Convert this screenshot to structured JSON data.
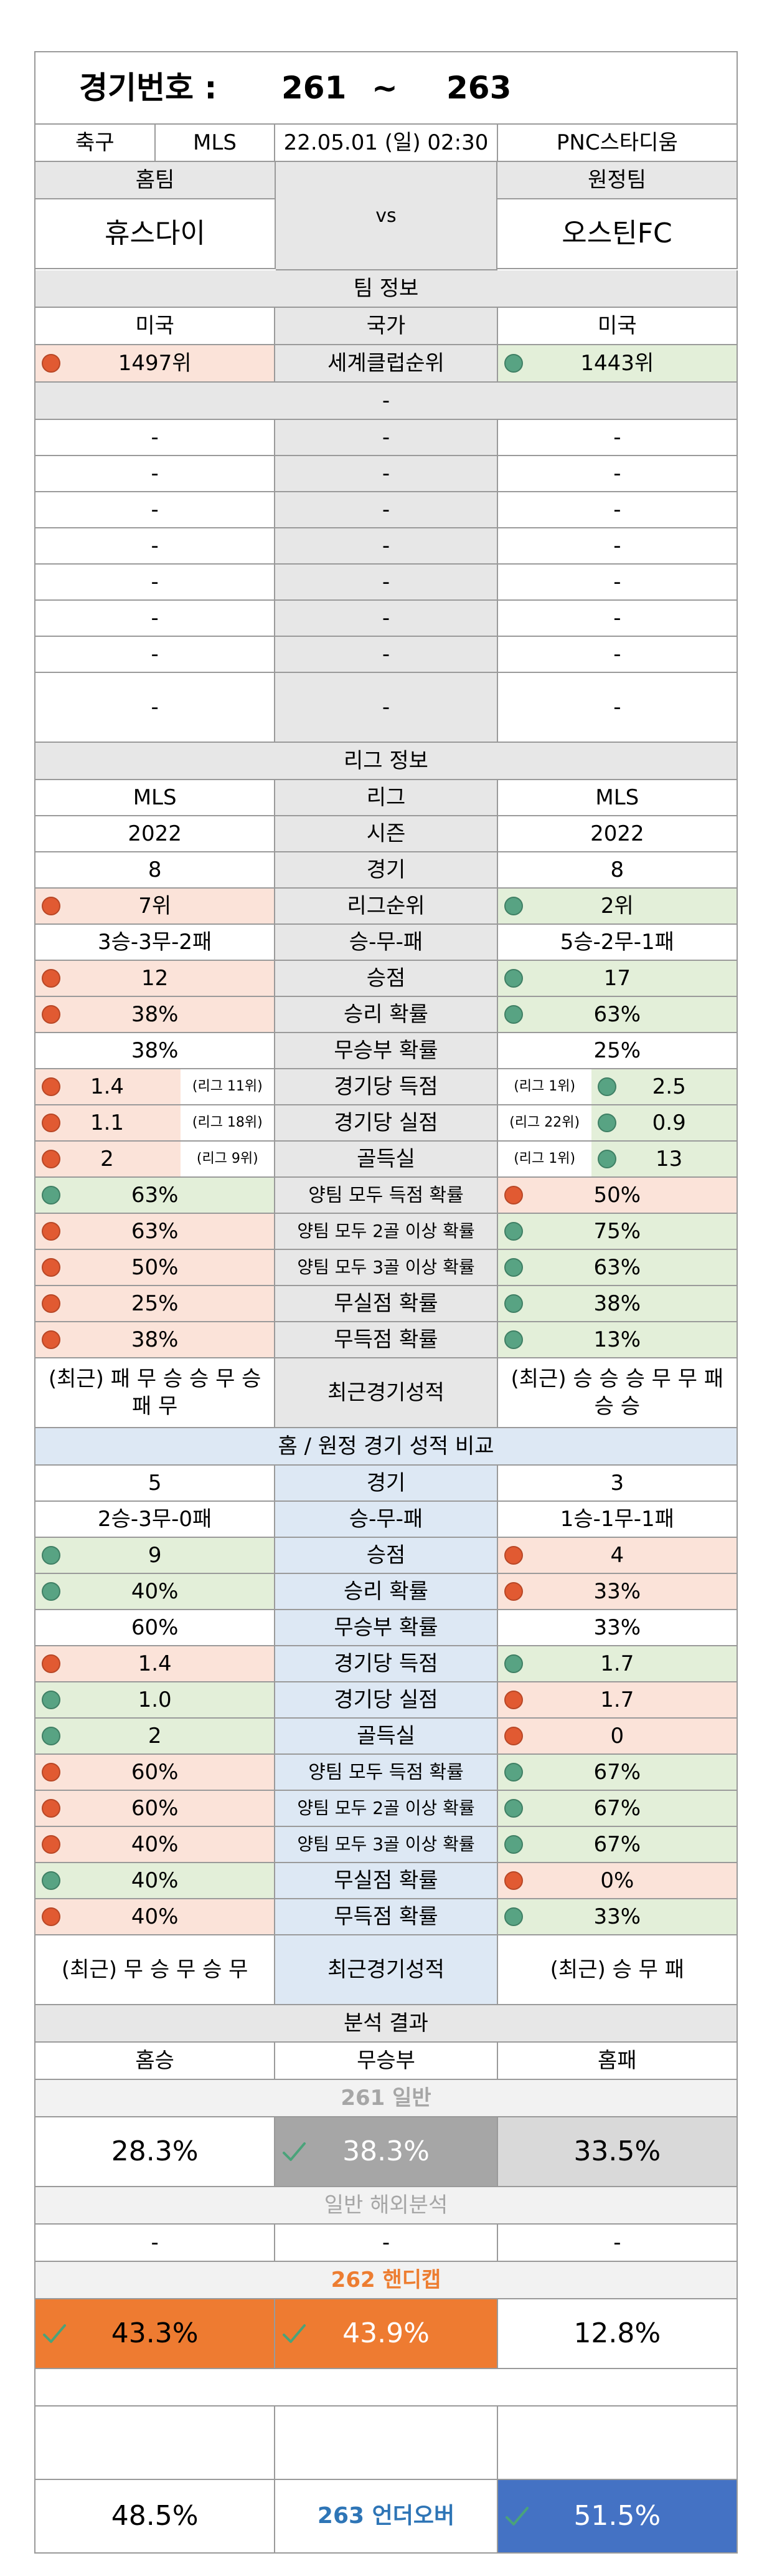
{
  "header": {
    "label": "경기번호 :",
    "start": "261",
    "sep": "~",
    "end": "263"
  },
  "match": {
    "sport": "축구",
    "league": "MLS",
    "datetime": "22.05.01 (일) 02:30",
    "venue": "PNC스타디움",
    "home_label": "홈팀",
    "away_label": "원정팀",
    "home_team": "휴스다이",
    "vs": "vs",
    "away_team": "오스틴FC"
  },
  "team_info": {
    "title": "팀 정보",
    "country_label": "국가",
    "home_country": "미국",
    "away_country": "미국",
    "rank_label": "세계클럽순위",
    "home_rank": "1497위",
    "away_rank": "1443위",
    "blank_title": "-",
    "dash": "-"
  },
  "league_info": {
    "title": "리그 정보",
    "rows": [
      {
        "label": "리그",
        "home": "MLS",
        "away": "MLS",
        "hc": "",
        "ac": ""
      },
      {
        "label": "시즌",
        "home": "2022",
        "away": "2022",
        "hc": "",
        "ac": ""
      },
      {
        "label": "경기",
        "home": "8",
        "away": "8",
        "hc": "",
        "ac": ""
      },
      {
        "label": "리그순위",
        "home": "7위",
        "away": "2위",
        "hc": "red",
        "ac": "green"
      },
      {
        "label": "승-무-패",
        "home": "3승-3무-2패",
        "away": "5승-2무-1패",
        "hc": "",
        "ac": ""
      },
      {
        "label": "승점",
        "home": "12",
        "away": "17",
        "hc": "red",
        "ac": "green"
      },
      {
        "label": "승리 확률",
        "home": "38%",
        "away": "63%",
        "hc": "red",
        "ac": "green"
      },
      {
        "label": "무승부 확률",
        "home": "38%",
        "away": "25%",
        "hc": "",
        "ac": ""
      },
      {
        "label": "경기당 득점",
        "home": "1.4",
        "away": "2.5",
        "hc": "red",
        "ac": "green",
        "hn": "(리그 11위)",
        "an": "(리그 1위)"
      },
      {
        "label": "경기당 실점",
        "home": "1.1",
        "away": "0.9",
        "hc": "red",
        "ac": "green",
        "hn": "(리그 18위)",
        "an": "(리그 22위)"
      },
      {
        "label": "골득실",
        "home": "2",
        "away": "13",
        "hc": "red",
        "ac": "green",
        "hn": "(리그 9위)",
        "an": "(리그 1위)"
      },
      {
        "label": "양팀 모두 득점 확률",
        "home": "63%",
        "away": "50%",
        "hc": "green",
        "ac": "red"
      },
      {
        "label": "양팀 모두 2골 이상 확률",
        "home": "63%",
        "away": "75%",
        "hc": "red",
        "ac": "green"
      },
      {
        "label": "양팀 모두 3골 이상 확률",
        "home": "50%",
        "away": "63%",
        "hc": "red",
        "ac": "green"
      },
      {
        "label": "무실점 확률",
        "home": "25%",
        "away": "38%",
        "hc": "red",
        "ac": "green"
      },
      {
        "label": "무득점 확률",
        "home": "38%",
        "away": "13%",
        "hc": "red",
        "ac": "green"
      }
    ],
    "recent_label": "최근경기성적",
    "home_recent": "(최근) 패 무 승 승 무 승 패 무",
    "away_recent": "(최근) 승 승 승 무 무 패 승 승"
  },
  "comparison": {
    "title": "홈 / 원정 경기 성적 비교",
    "rows": [
      {
        "label": "경기",
        "home": "5",
        "away": "3",
        "hc": "",
        "ac": ""
      },
      {
        "label": "승-무-패",
        "home": "2승-3무-0패",
        "away": "1승-1무-1패",
        "hc": "",
        "ac": ""
      },
      {
        "label": "승점",
        "home": "9",
        "away": "4",
        "hc": "green",
        "ac": "red"
      },
      {
        "label": "승리 확률",
        "home": "40%",
        "away": "33%",
        "hc": "green",
        "ac": "red"
      },
      {
        "label": "무승부 확률",
        "home": "60%",
        "away": "33%",
        "hc": "",
        "ac": ""
      },
      {
        "label": "경기당 득점",
        "home": "1.4",
        "away": "1.7",
        "hc": "red",
        "ac": "green"
      },
      {
        "label": "경기당 실점",
        "home": "1.0",
        "away": "1.7",
        "hc": "green",
        "ac": "red"
      },
      {
        "label": "골득실",
        "home": "2",
        "away": "0",
        "hc": "green",
        "ac": "red"
      },
      {
        "label": "양팀 모두 득점 확률",
        "home": "60%",
        "away": "67%",
        "hc": "red",
        "ac": "green"
      },
      {
        "label": "양팀 모두 2골 이상 확률",
        "home": "60%",
        "away": "67%",
        "hc": "red",
        "ac": "green"
      },
      {
        "label": "양팀 모두 3골 이상 확률",
        "home": "40%",
        "away": "67%",
        "hc": "red",
        "ac": "green"
      },
      {
        "label": "무실점 확률",
        "home": "40%",
        "away": "0%",
        "hc": "green",
        "ac": "red"
      },
      {
        "label": "무득점 확률",
        "home": "40%",
        "away": "33%",
        "hc": "red",
        "ac": "green"
      }
    ],
    "recent_label": "최근경기성적",
    "home_recent": "(최근) 무 승 무 승 무",
    "away_recent": "(최근) 승 무 패"
  },
  "analysis": {
    "title": "분석 결과",
    "home_win": "홈승",
    "draw": "무승부",
    "home_loss": "홈패",
    "g261_title": "261 일반",
    "g261": {
      "home": "28.3%",
      "draw": "38.3%",
      "away": "33.5%"
    },
    "overseas_title": "일반 해외분석",
    "dash": "-",
    "g262_title": "262 핸디캡",
    "g262": {
      "home": "43.3%",
      "draw": "43.9%",
      "away": "12.8%"
    },
    "g263_title": "263 언더오버",
    "g263": {
      "under": "48.5%",
      "over": "51.5%"
    }
  },
  "colors": {
    "border": "#9a9a9a",
    "header_gray": "#e7e7e7",
    "red_bg": "#fbe3d9",
    "green_bg": "#e3efd9",
    "blue_bg": "#dde8f4",
    "red_dot": "#e15a32",
    "green_dot": "#58a383",
    "orange": "#ee7b31",
    "blue_hi": "#4472c4",
    "pick_gray": "#a6a6a6",
    "light_gray": "#d9d9d9",
    "handicap_title": "#ed7d31",
    "underover_title": "#2e75b6",
    "general_title": "#a6a6a6"
  }
}
